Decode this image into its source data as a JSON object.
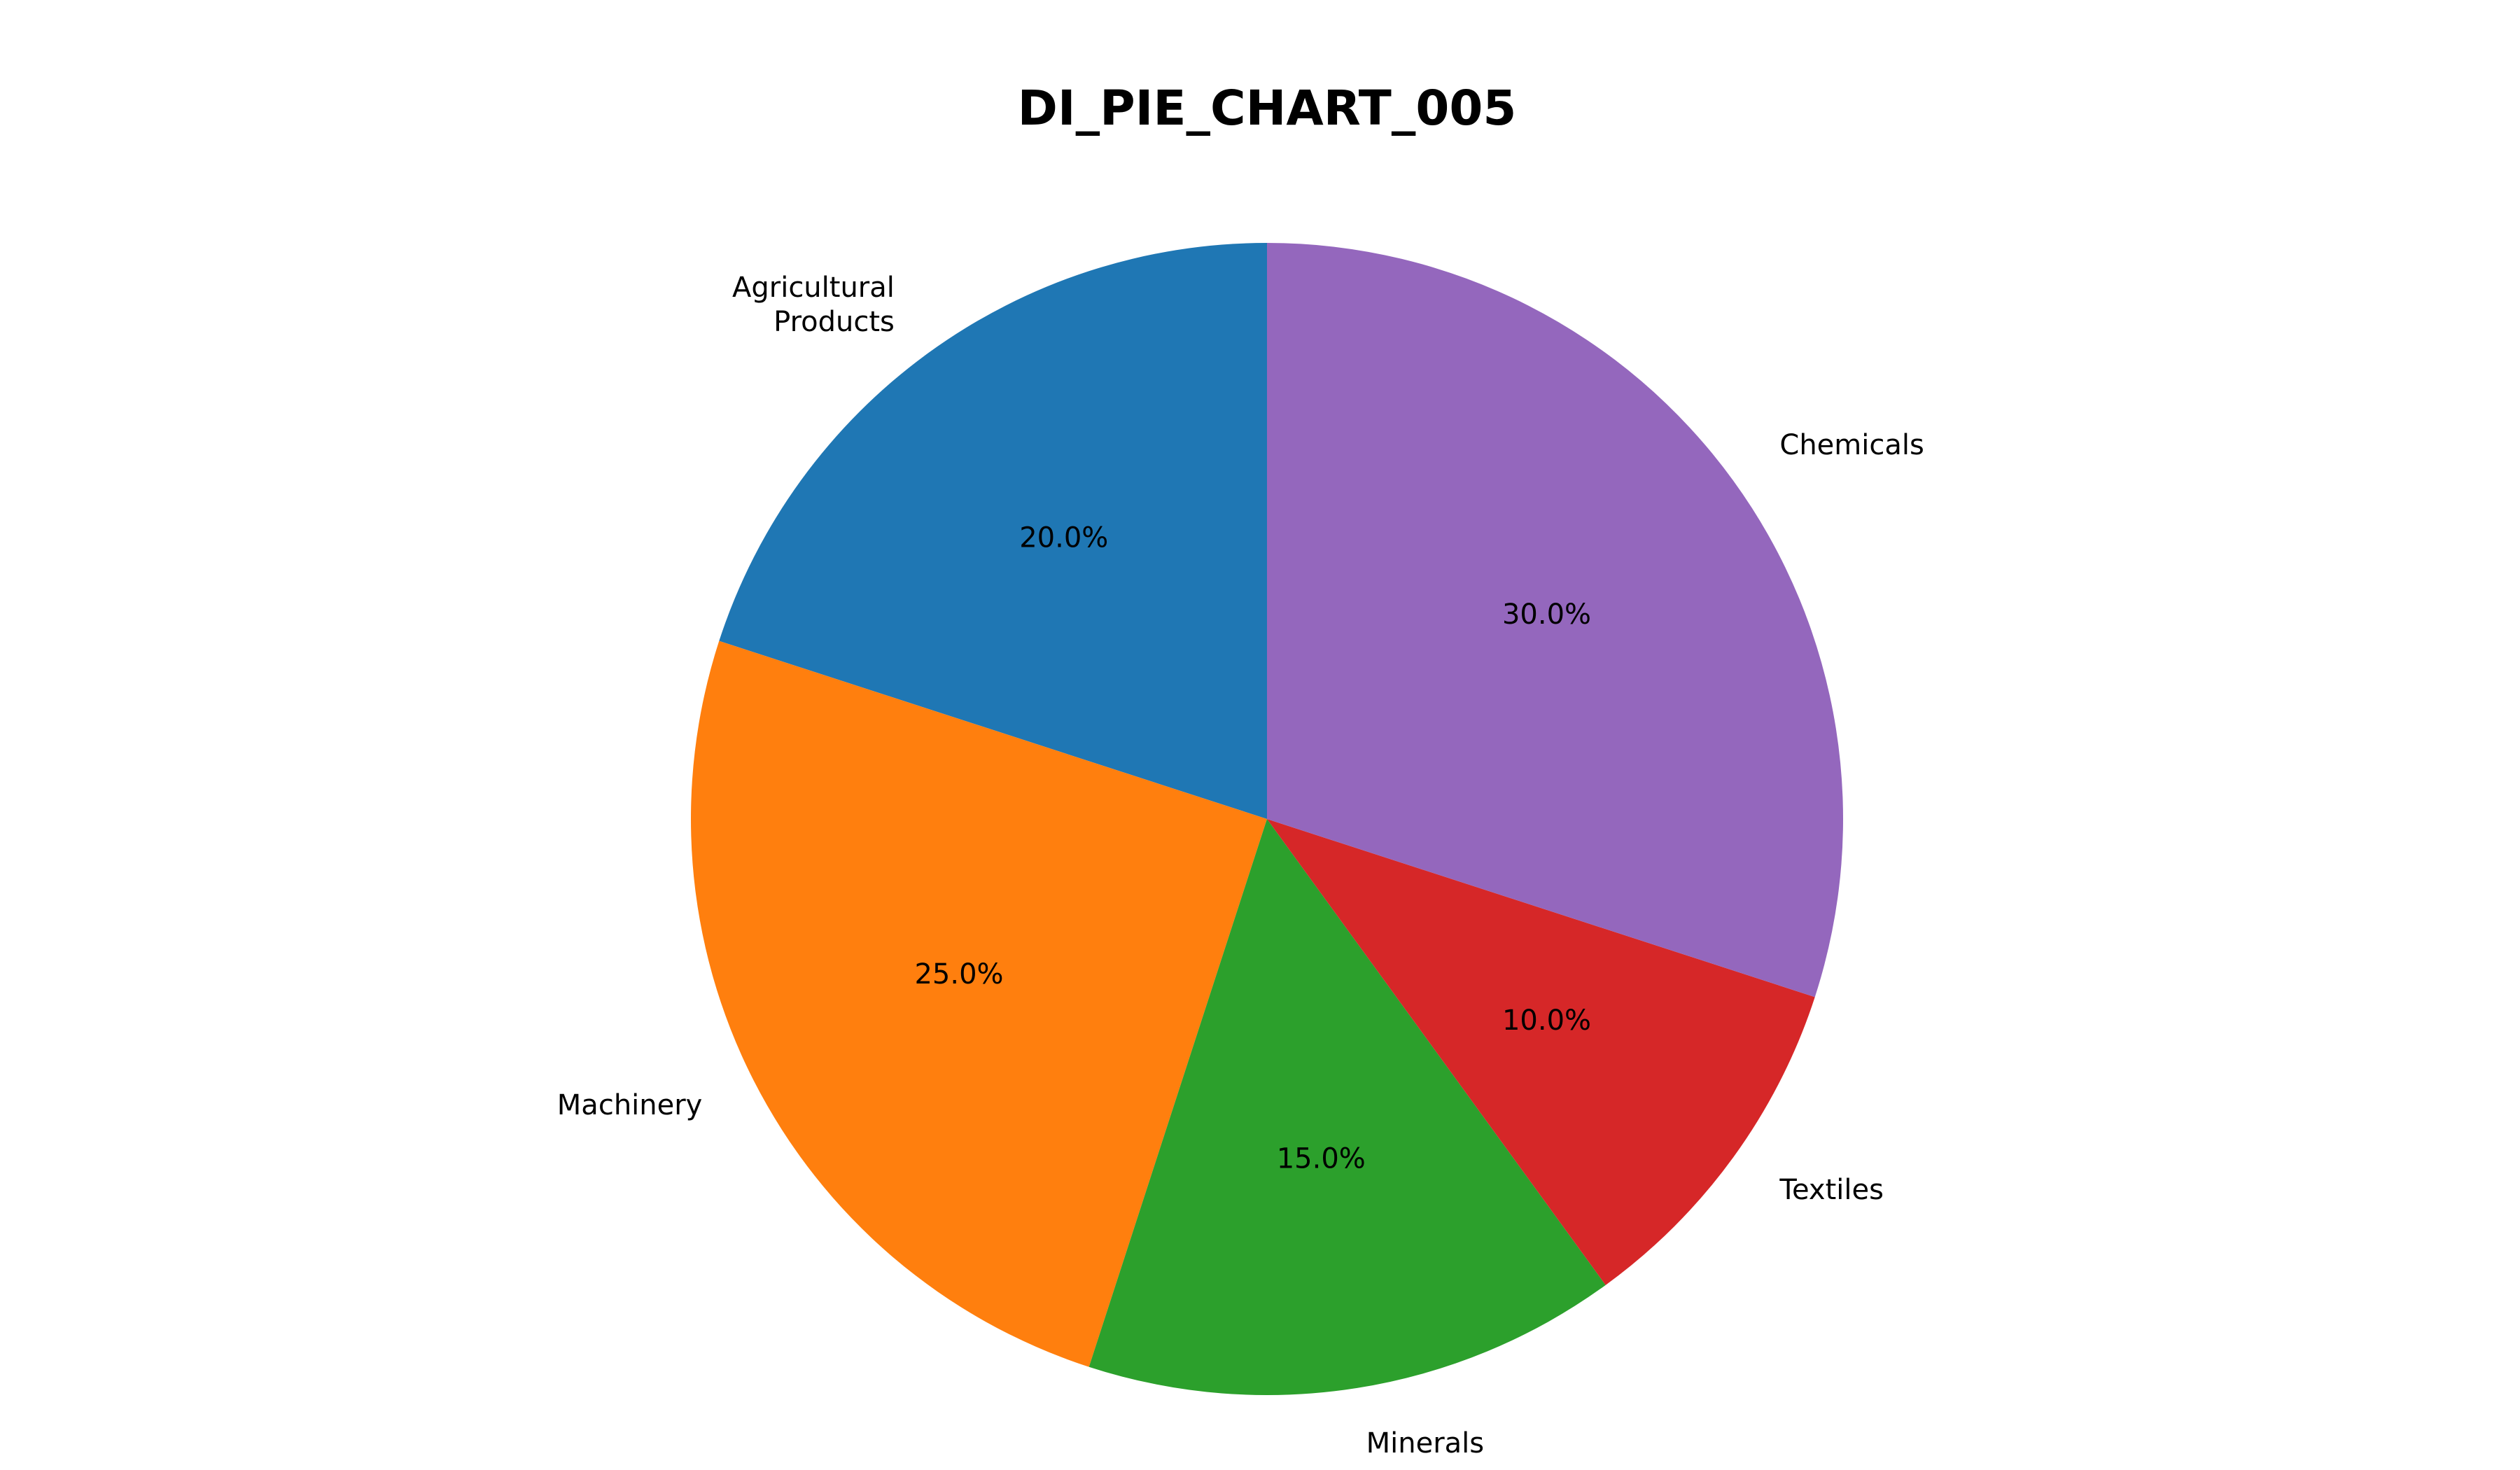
{
  "chart_data": {
    "type": "pie",
    "title": "DI_PIE_CHART_005",
    "start_angle_deg": 90,
    "direction": "counterclockwise",
    "slices": [
      {
        "label": "Agricultural\nProducts",
        "value": 20.0,
        "pct_text": "20.0%",
        "color": "#1f77b4"
      },
      {
        "label": "Machinery",
        "value": 25.0,
        "pct_text": "25.0%",
        "color": "#ff7f0e"
      },
      {
        "label": "Minerals",
        "value": 15.0,
        "pct_text": "15.0%",
        "color": "#2ca02c"
      },
      {
        "label": "Textiles",
        "value": 10.0,
        "pct_text": "10.0%",
        "color": "#d62728"
      },
      {
        "label": "Chemicals",
        "value": 30.0,
        "pct_text": "30.0%",
        "color": "#9467bd"
      }
    ]
  }
}
